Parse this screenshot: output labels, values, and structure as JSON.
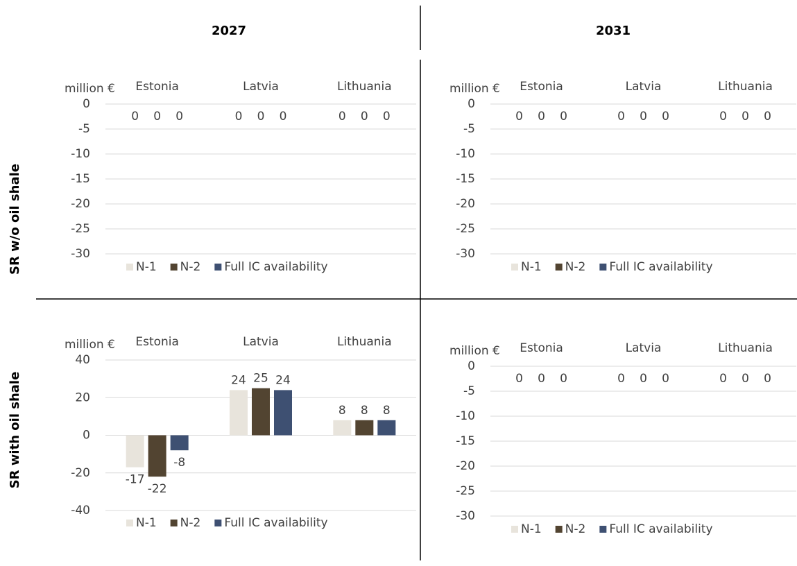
{
  "column_headers": [
    "2027",
    "2031"
  ],
  "row_headers": [
    "SR w/o oil shale",
    "SR with oil shale"
  ],
  "chart_data": [
    {
      "type": "bar",
      "y_label": "million €",
      "categories": [
        "Estonia",
        "Latvia",
        "Lithuania"
      ],
      "series": [
        {
          "name": "N-1",
          "color": "#e8e4dc",
          "values": [
            0,
            0,
            0
          ]
        },
        {
          "name": "N-2",
          "color": "#524431",
          "values": [
            0,
            0,
            0
          ]
        },
        {
          "name": "Full IC availability",
          "color": "#3e5072",
          "values": [
            0,
            0,
            0
          ]
        }
      ],
      "ylim": [
        -30,
        0
      ],
      "yticks": [
        0,
        -5,
        -10,
        -15,
        -20,
        -25,
        -30
      ],
      "grid": true,
      "legend": "bottom"
    },
    {
      "type": "bar",
      "y_label": "million €",
      "categories": [
        "Estonia",
        "Latvia",
        "Lithuania"
      ],
      "series": [
        {
          "name": "N-1",
          "color": "#e8e4dc",
          "values": [
            0,
            0,
            0
          ]
        },
        {
          "name": "N-2",
          "color": "#524431",
          "values": [
            0,
            0,
            0
          ]
        },
        {
          "name": "Full IC availability",
          "color": "#3e5072",
          "values": [
            0,
            0,
            0
          ]
        }
      ],
      "ylim": [
        -30,
        0
      ],
      "yticks": [
        0,
        -5,
        -10,
        -15,
        -20,
        -25,
        -30
      ],
      "grid": true,
      "legend": "bottom"
    },
    {
      "type": "bar",
      "y_label": "million €",
      "categories": [
        "Estonia",
        "Latvia",
        "Lithuania"
      ],
      "series": [
        {
          "name": "N-1",
          "color": "#e8e4dc",
          "values": [
            -17,
            24,
            8
          ]
        },
        {
          "name": "N-2",
          "color": "#524431",
          "values": [
            -22,
            25,
            8
          ]
        },
        {
          "name": "Full IC availability",
          "color": "#3e5072",
          "values": [
            -8,
            24,
            8
          ]
        }
      ],
      "ylim": [
        -40,
        40
      ],
      "yticks": [
        40,
        20,
        0,
        -20,
        -40
      ],
      "grid": true,
      "legend": "bottom"
    },
    {
      "type": "bar",
      "y_label": "million €",
      "categories": [
        "Estonia",
        "Latvia",
        "Lithuania"
      ],
      "series": [
        {
          "name": "N-1",
          "color": "#e8e4dc",
          "values": [
            0,
            0,
            0
          ]
        },
        {
          "name": "N-2",
          "color": "#524431",
          "values": [
            0,
            0,
            0
          ]
        },
        {
          "name": "Full IC availability",
          "color": "#3e5072",
          "values": [
            0,
            0,
            0
          ]
        }
      ],
      "ylim": [
        -30,
        0
      ],
      "yticks": [
        0,
        -5,
        -10,
        -15,
        -20,
        -25,
        -30
      ],
      "grid": true,
      "legend": "bottom"
    }
  ]
}
